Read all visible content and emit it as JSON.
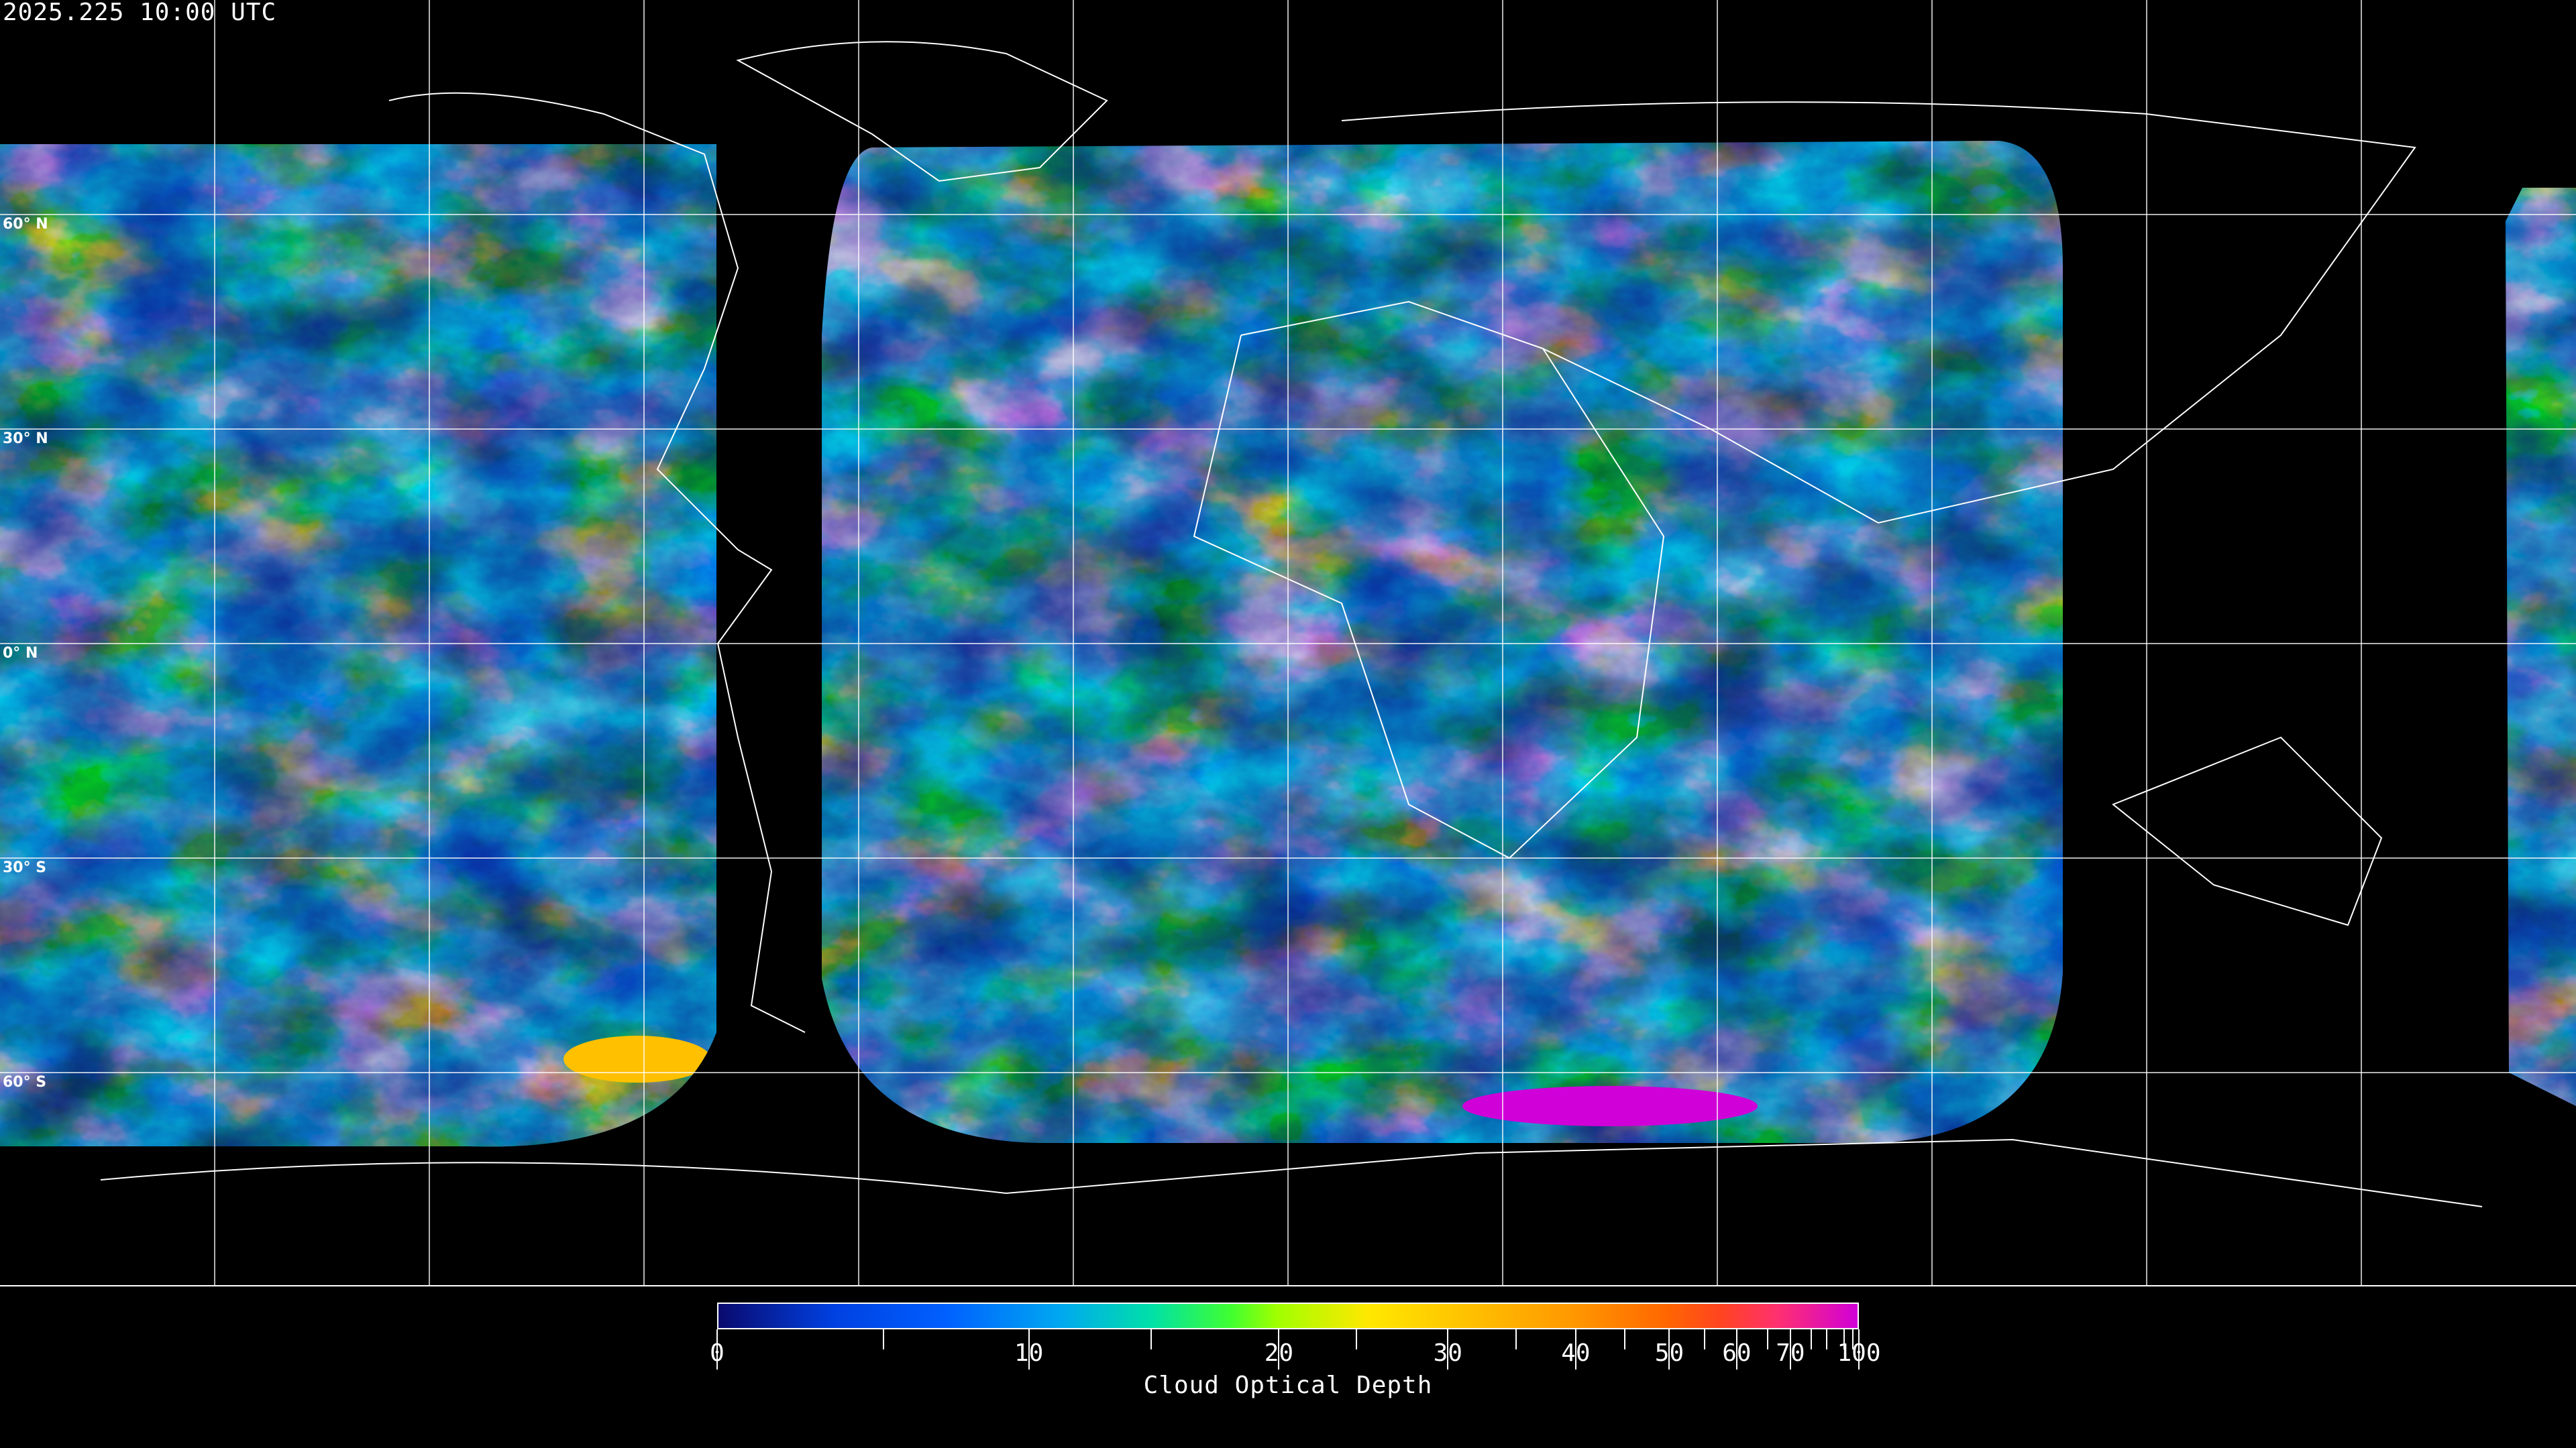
{
  "header": {
    "timestamp": "2025.225 10:00 UTC"
  },
  "map": {
    "projection": "equirectangular",
    "graticule_spacing_deg": 30,
    "lat_labels": [
      "60° N",
      "30° N",
      "0° N",
      "30° S",
      "60° S"
    ],
    "grid_color": "#ffffff",
    "coastline_color": "#ffffff"
  },
  "colorbar": {
    "title": "Cloud Optical Depth",
    "range": [
      0,
      100
    ],
    "tick_labels": [
      "0",
      "10",
      "20",
      "30",
      "40",
      "50",
      "60",
      "70",
      "100"
    ],
    "colors": [
      "#0a0a6e",
      "#0060ff",
      "#00a8f0",
      "#40ff30",
      "#ffe800",
      "#ff9800",
      "#ff4420",
      "#d000d8"
    ]
  }
}
